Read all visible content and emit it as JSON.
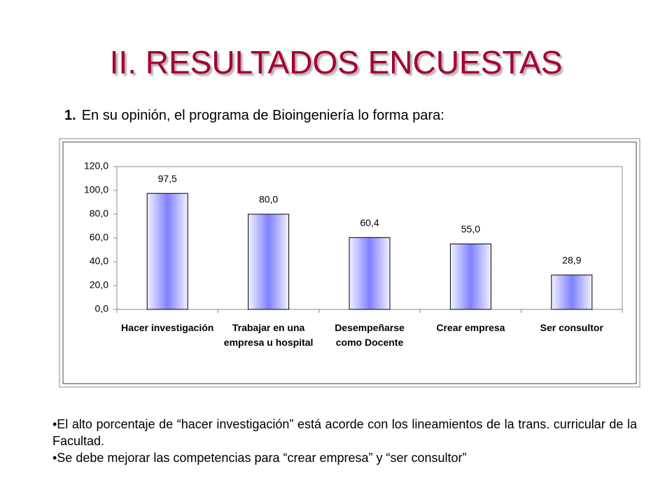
{
  "header": {
    "title": "II.  RESULTADOS ENCUESTAS",
    "question_number": "1.",
    "question": "En su opinión, el programa de Bioingeniería lo forma para:"
  },
  "chart_data": {
    "type": "bar",
    "categories": [
      "Hacer investigación",
      "Trabajar en una empresa u hospital",
      "Desempeñarse como Docente",
      "Crear empresa",
      "Ser consultor"
    ],
    "values": [
      97.5,
      80.0,
      60.4,
      55.0,
      28.9
    ],
    "value_labels": [
      "97,5",
      "80,0",
      "60,4",
      "55,0",
      "28,9"
    ],
    "color": "#8080ff",
    "ylim": [
      0,
      120
    ],
    "yticks": [
      {
        "value": 0,
        "label": "0,0"
      },
      {
        "value": 20,
        "label": "20,0"
      },
      {
        "value": 40,
        "label": "40,0"
      },
      {
        "value": 60,
        "label": "60,0"
      },
      {
        "value": 80,
        "label": "80,0"
      },
      {
        "value": 100,
        "label": "100,0"
      },
      {
        "value": 120,
        "label": "120,0"
      }
    ],
    "grid": false
  },
  "notes": [
    "•El alto porcentaje de “hacer investigación” está acorde con los lineamientos de la trans. curricular de la Facultad.",
    "•Se debe mejorar las competencias para “crear empresa” y “ser consultor”"
  ]
}
